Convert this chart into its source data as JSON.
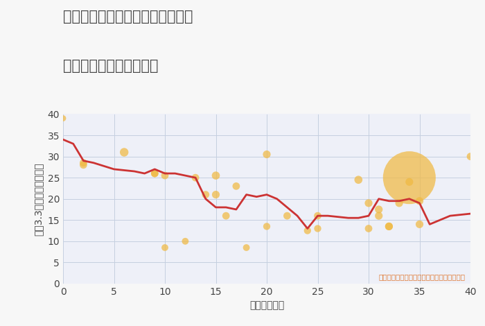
{
  "title_line1": "福岡県京都郡みやこ町犀川横瀬の",
  "title_line2": "築年数別中古戸建て価格",
  "xlabel": "築年数（年）",
  "ylabel": "坪（3.3㎡）単価（万円）",
  "annotation": "円の大きさは、取引のあった物件面積を示す",
  "xlim": [
    0,
    40
  ],
  "ylim": [
    0,
    40
  ],
  "xticks": [
    0,
    5,
    10,
    15,
    20,
    25,
    30,
    35,
    40
  ],
  "yticks": [
    0,
    5,
    10,
    15,
    20,
    25,
    30,
    35,
    40
  ],
  "line_x": [
    0,
    1,
    2,
    3,
    5,
    7,
    8,
    9,
    10,
    11,
    13,
    14,
    15,
    16,
    17,
    18,
    19,
    20,
    21,
    23,
    24,
    25,
    26,
    28,
    29,
    30,
    31,
    32,
    33,
    34,
    35,
    36,
    37,
    38,
    40
  ],
  "line_y": [
    34,
    33,
    29,
    28.5,
    27,
    26.5,
    26,
    27,
    26,
    26,
    25,
    20,
    18,
    18,
    17.5,
    21,
    20.5,
    21,
    20,
    16,
    13,
    16,
    16,
    15.5,
    15.5,
    16,
    20,
    19.5,
    19.5,
    20,
    19,
    14,
    15,
    16,
    16.5
  ],
  "scatter_x": [
    0,
    2,
    2,
    6,
    9,
    9,
    10,
    10,
    12,
    13,
    14,
    15,
    15,
    16,
    17,
    18,
    20,
    20,
    22,
    24,
    25,
    25,
    29,
    30,
    30,
    31,
    31,
    32,
    32,
    33,
    34,
    34,
    35,
    35,
    40
  ],
  "scatter_y": [
    39,
    28.5,
    28,
    31,
    26,
    26,
    8.5,
    25.5,
    10,
    25,
    21,
    21,
    25.5,
    16,
    23,
    8.5,
    30.5,
    13.5,
    16,
    12.5,
    13,
    16,
    24.5,
    19,
    13,
    17.5,
    16,
    13.5,
    13.5,
    19,
    25,
    24,
    19.5,
    14,
    30
  ],
  "scatter_size": [
    40,
    60,
    60,
    80,
    60,
    60,
    50,
    60,
    50,
    60,
    60,
    65,
    70,
    60,
    60,
    50,
    65,
    55,
    60,
    55,
    55,
    60,
    70,
    65,
    60,
    65,
    65,
    65,
    65,
    65,
    3000,
    65,
    65,
    65,
    60
  ],
  "scatter_color": "#f0b942",
  "scatter_alpha": 0.72,
  "line_color": "#cc3333",
  "line_width": 2.0,
  "background_color": "#f7f7f7",
  "plot_background": "#eef0f8",
  "grid_color": "#c5cfe0",
  "title_color": "#444444",
  "annotation_color": "#e07830",
  "title_fontsize": 15,
  "axis_label_fontsize": 10,
  "tick_fontsize": 10
}
